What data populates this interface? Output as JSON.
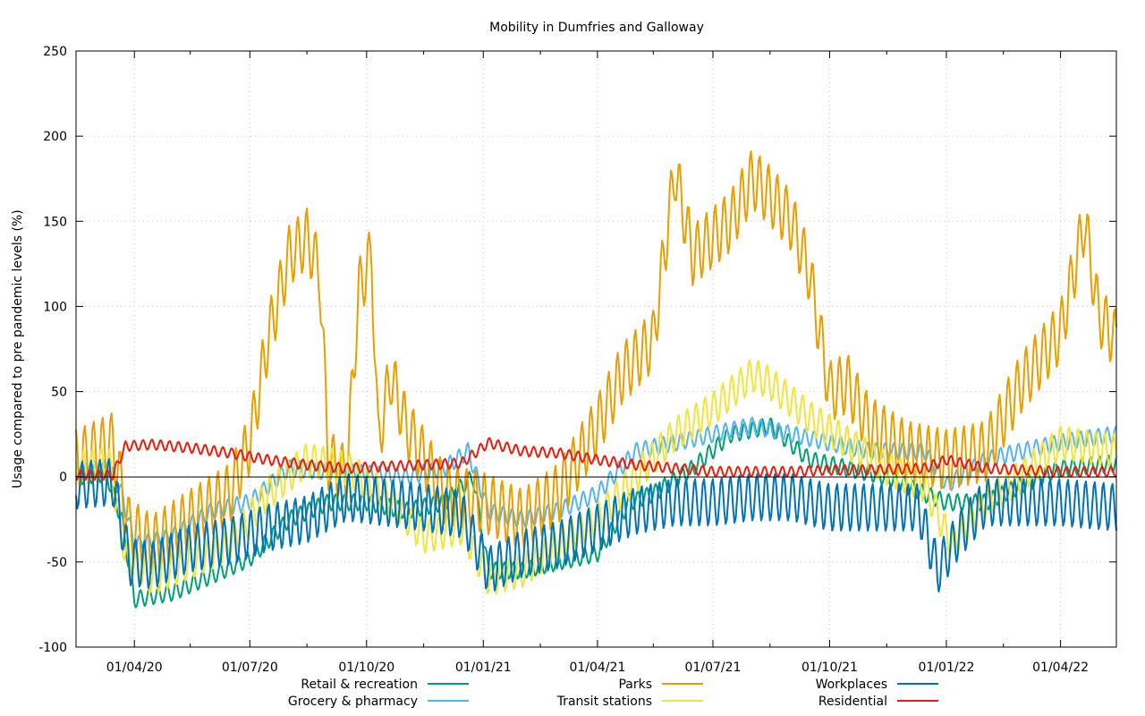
{
  "chart_data": {
    "type": "line",
    "title": "Mobility in Dumfries and Galloway",
    "ylabel": "Usage compared to pre pandemic levels (%)",
    "xlabel": "",
    "x_range": [
      "2020-02-15",
      "2022-05-15"
    ],
    "ylim": [
      -100,
      250
    ],
    "y_ticks": [
      -100,
      -50,
      0,
      50,
      100,
      150,
      200,
      250
    ],
    "y_tick_labels": [
      "-100",
      "-50",
      "0",
      "50",
      "100",
      "150",
      "200",
      "250"
    ],
    "x_ticks": [
      "2020-04-01",
      "2020-07-01",
      "2020-10-01",
      "2021-01-01",
      "2021-04-01",
      "2021-07-01",
      "2021-10-01",
      "2022-01-01",
      "2022-04-01"
    ],
    "x_tick_labels": [
      "01/04/20",
      "01/07/20",
      "01/10/20",
      "01/01/21",
      "01/04/21",
      "01/07/21",
      "01/10/21",
      "01/01/22",
      "01/04/22"
    ],
    "x_minor_ticks": [
      "2020-05-15",
      "2020-08-15",
      "2020-11-15",
      "2021-02-15",
      "2021-05-15",
      "2021-08-15",
      "2021-11-15",
      "2022-02-15"
    ],
    "grid": true,
    "legend_position": "bottom",
    "series": [
      {
        "name": "Retail & recreation",
        "color": "#009e73",
        "weekly_amplitude": 5,
        "points": [
          [
            "2020-02-15",
            0
          ],
          [
            "2020-03-10",
            2
          ],
          [
            "2020-03-22",
            -25
          ],
          [
            "2020-04-01",
            -72
          ],
          [
            "2020-05-01",
            -68
          ],
          [
            "2020-06-01",
            -58
          ],
          [
            "2020-07-01",
            -48
          ],
          [
            "2020-08-01",
            -25
          ],
          [
            "2020-09-01",
            -15
          ],
          [
            "2020-10-01",
            -15
          ],
          [
            "2020-11-01",
            -20
          ],
          [
            "2020-12-01",
            -15
          ],
          [
            "2020-12-24",
            0
          ],
          [
            "2021-01-05",
            -55
          ],
          [
            "2021-02-01",
            -55
          ],
          [
            "2021-03-01",
            -50
          ],
          [
            "2021-04-01",
            -45
          ],
          [
            "2021-04-26",
            -15
          ],
          [
            "2021-05-15",
            -10
          ],
          [
            "2021-06-15",
            5
          ],
          [
            "2021-07-15",
            25
          ],
          [
            "2021-08-15",
            30
          ],
          [
            "2021-09-15",
            10
          ],
          [
            "2021-10-15",
            5
          ],
          [
            "2021-11-15",
            0
          ],
          [
            "2021-12-15",
            -10
          ],
          [
            "2022-01-01",
            -15
          ],
          [
            "2022-02-01",
            -15
          ],
          [
            "2022-03-01",
            -5
          ],
          [
            "2022-04-01",
            5
          ],
          [
            "2022-05-15",
            8
          ]
        ]
      },
      {
        "name": "Grocery & pharmacy",
        "color": "#56b4e9",
        "weekly_amplitude": 5,
        "points": [
          [
            "2020-02-15",
            2
          ],
          [
            "2020-03-12",
            5
          ],
          [
            "2020-03-22",
            -10
          ],
          [
            "2020-04-01",
            -40
          ],
          [
            "2020-05-01",
            -35
          ],
          [
            "2020-06-01",
            -20
          ],
          [
            "2020-07-01",
            -15
          ],
          [
            "2020-08-01",
            5
          ],
          [
            "2020-09-01",
            3
          ],
          [
            "2020-10-01",
            2
          ],
          [
            "2020-11-01",
            0
          ],
          [
            "2020-12-01",
            5
          ],
          [
            "2020-12-20",
            15
          ],
          [
            "2021-01-05",
            -20
          ],
          [
            "2021-02-01",
            -25
          ],
          [
            "2021-03-01",
            -20
          ],
          [
            "2021-04-01",
            -10
          ],
          [
            "2021-05-01",
            15
          ],
          [
            "2021-06-01",
            20
          ],
          [
            "2021-07-01",
            25
          ],
          [
            "2021-08-01",
            30
          ],
          [
            "2021-09-01",
            25
          ],
          [
            "2021-10-01",
            20
          ],
          [
            "2021-11-01",
            15
          ],
          [
            "2021-12-15",
            15
          ],
          [
            "2022-01-01",
            -5
          ],
          [
            "2022-02-01",
            10
          ],
          [
            "2022-03-01",
            15
          ],
          [
            "2022-04-01",
            20
          ],
          [
            "2022-05-15",
            25
          ]
        ]
      },
      {
        "name": "Parks",
        "color": "#e69f00",
        "weekly_amplitude": 18,
        "points": [
          [
            "2020-02-15",
            10
          ],
          [
            "2020-03-15",
            20
          ],
          [
            "2020-03-28",
            -30
          ],
          [
            "2020-04-15",
            -40
          ],
          [
            "2020-05-15",
            -25
          ],
          [
            "2020-06-15",
            -10
          ],
          [
            "2020-07-01",
            20
          ],
          [
            "2020-07-15",
            80
          ],
          [
            "2020-08-01",
            130
          ],
          [
            "2020-08-15",
            140
          ],
          [
            "2020-08-25",
            120
          ],
          [
            "2020-09-01",
            10
          ],
          [
            "2020-09-15",
            0
          ],
          [
            "2020-09-25",
            110
          ],
          [
            "2020-10-05",
            130
          ],
          [
            "2020-10-10",
            20
          ],
          [
            "2020-10-20",
            60
          ],
          [
            "2020-11-01",
            30
          ],
          [
            "2020-12-01",
            -10
          ],
          [
            "2021-01-01",
            -15
          ],
          [
            "2021-02-01",
            -25
          ],
          [
            "2021-03-01",
            -10
          ],
          [
            "2021-04-01",
            30
          ],
          [
            "2021-04-20",
            60
          ],
          [
            "2021-05-15",
            80
          ],
          [
            "2021-06-01",
            180
          ],
          [
            "2021-06-15",
            130
          ],
          [
            "2021-07-15",
            150
          ],
          [
            "2021-08-01",
            175
          ],
          [
            "2021-08-15",
            165
          ],
          [
            "2021-09-01",
            150
          ],
          [
            "2021-09-15",
            120
          ],
          [
            "2021-10-01",
            50
          ],
          [
            "2021-10-15",
            55
          ],
          [
            "2021-11-01",
            30
          ],
          [
            "2021-12-01",
            15
          ],
          [
            "2022-01-01",
            10
          ],
          [
            "2022-02-01",
            15
          ],
          [
            "2022-03-01",
            55
          ],
          [
            "2022-04-01",
            85
          ],
          [
            "2022-04-20",
            150
          ],
          [
            "2022-05-01",
            95
          ],
          [
            "2022-05-15",
            80
          ]
        ]
      },
      {
        "name": "Transit stations",
        "color": "#f0e442",
        "weekly_amplitude": 10,
        "points": [
          [
            "2020-02-15",
            5
          ],
          [
            "2020-03-12",
            8
          ],
          [
            "2020-03-25",
            -45
          ],
          [
            "2020-04-15",
            -60
          ],
          [
            "2020-05-15",
            -50
          ],
          [
            "2020-06-15",
            -40
          ],
          [
            "2020-07-15",
            -10
          ],
          [
            "2020-08-15",
            10
          ],
          [
            "2020-09-15",
            5
          ],
          [
            "2020-10-15",
            -10
          ],
          [
            "2020-11-15",
            -35
          ],
          [
            "2020-12-15",
            -30
          ],
          [
            "2021-01-05",
            -60
          ],
          [
            "2021-02-01",
            -55
          ],
          [
            "2021-03-01",
            -40
          ],
          [
            "2021-04-01",
            -25
          ],
          [
            "2021-05-01",
            0
          ],
          [
            "2021-06-01",
            25
          ],
          [
            "2021-07-01",
            40
          ],
          [
            "2021-08-01",
            60
          ],
          [
            "2021-08-15",
            55
          ],
          [
            "2021-09-15",
            35
          ],
          [
            "2021-10-15",
            20
          ],
          [
            "2021-11-15",
            5
          ],
          [
            "2021-12-15",
            -5
          ],
          [
            "2022-01-05",
            -40
          ],
          [
            "2022-02-01",
            -15
          ],
          [
            "2022-03-01",
            0
          ],
          [
            "2022-04-01",
            20
          ],
          [
            "2022-05-15",
            15
          ]
        ]
      },
      {
        "name": "Workplaces",
        "color": "#0072b2",
        "weekly_amplitude": 14,
        "points": [
          [
            "2020-02-15",
            -5
          ],
          [
            "2020-03-15",
            -3
          ],
          [
            "2020-03-28",
            -50
          ],
          [
            "2020-04-15",
            -52
          ],
          [
            "2020-05-15",
            -42
          ],
          [
            "2020-06-15",
            -38
          ],
          [
            "2020-07-15",
            -30
          ],
          [
            "2020-08-15",
            -25
          ],
          [
            "2020-09-15",
            -12
          ],
          [
            "2020-10-15",
            -15
          ],
          [
            "2020-11-15",
            -18
          ],
          [
            "2020-12-15",
            -22
          ],
          [
            "2021-01-05",
            -55
          ],
          [
            "2021-02-01",
            -45
          ],
          [
            "2021-03-01",
            -40
          ],
          [
            "2021-04-01",
            -30
          ],
          [
            "2021-05-01",
            -20
          ],
          [
            "2021-06-01",
            -15
          ],
          [
            "2021-07-01",
            -15
          ],
          [
            "2021-08-01",
            -12
          ],
          [
            "2021-09-01",
            -12
          ],
          [
            "2021-10-01",
            -18
          ],
          [
            "2021-11-01",
            -18
          ],
          [
            "2021-12-10",
            -18
          ],
          [
            "2021-12-25",
            -55
          ],
          [
            "2022-01-10",
            -35
          ],
          [
            "2022-02-01",
            -15
          ],
          [
            "2022-03-01",
            -15
          ],
          [
            "2022-04-01",
            -15
          ],
          [
            "2022-05-15",
            -18
          ]
        ]
      },
      {
        "name": "Residential",
        "color": "#e51e10",
        "weekly_amplitude": 3,
        "points": [
          [
            "2020-02-15",
            1
          ],
          [
            "2020-03-15",
            1
          ],
          [
            "2020-03-25",
            18
          ],
          [
            "2020-04-15",
            19
          ],
          [
            "2020-05-15",
            17
          ],
          [
            "2020-06-15",
            14
          ],
          [
            "2020-07-15",
            10
          ],
          [
            "2020-08-15",
            7
          ],
          [
            "2020-09-15",
            5
          ],
          [
            "2020-10-15",
            6
          ],
          [
            "2020-11-15",
            7
          ],
          [
            "2020-12-15",
            8
          ],
          [
            "2021-01-05",
            20
          ],
          [
            "2021-02-01",
            15
          ],
          [
            "2021-03-01",
            14
          ],
          [
            "2021-04-01",
            10
          ],
          [
            "2021-05-01",
            7
          ],
          [
            "2021-06-01",
            5
          ],
          [
            "2021-07-01",
            3
          ],
          [
            "2021-08-01",
            3
          ],
          [
            "2021-09-01",
            3
          ],
          [
            "2021-10-01",
            4
          ],
          [
            "2021-11-01",
            4
          ],
          [
            "2021-12-15",
            5
          ],
          [
            "2022-01-01",
            10
          ],
          [
            "2022-02-01",
            5
          ],
          [
            "2022-03-01",
            4
          ],
          [
            "2022-04-01",
            3
          ],
          [
            "2022-05-15",
            3
          ]
        ]
      }
    ]
  }
}
